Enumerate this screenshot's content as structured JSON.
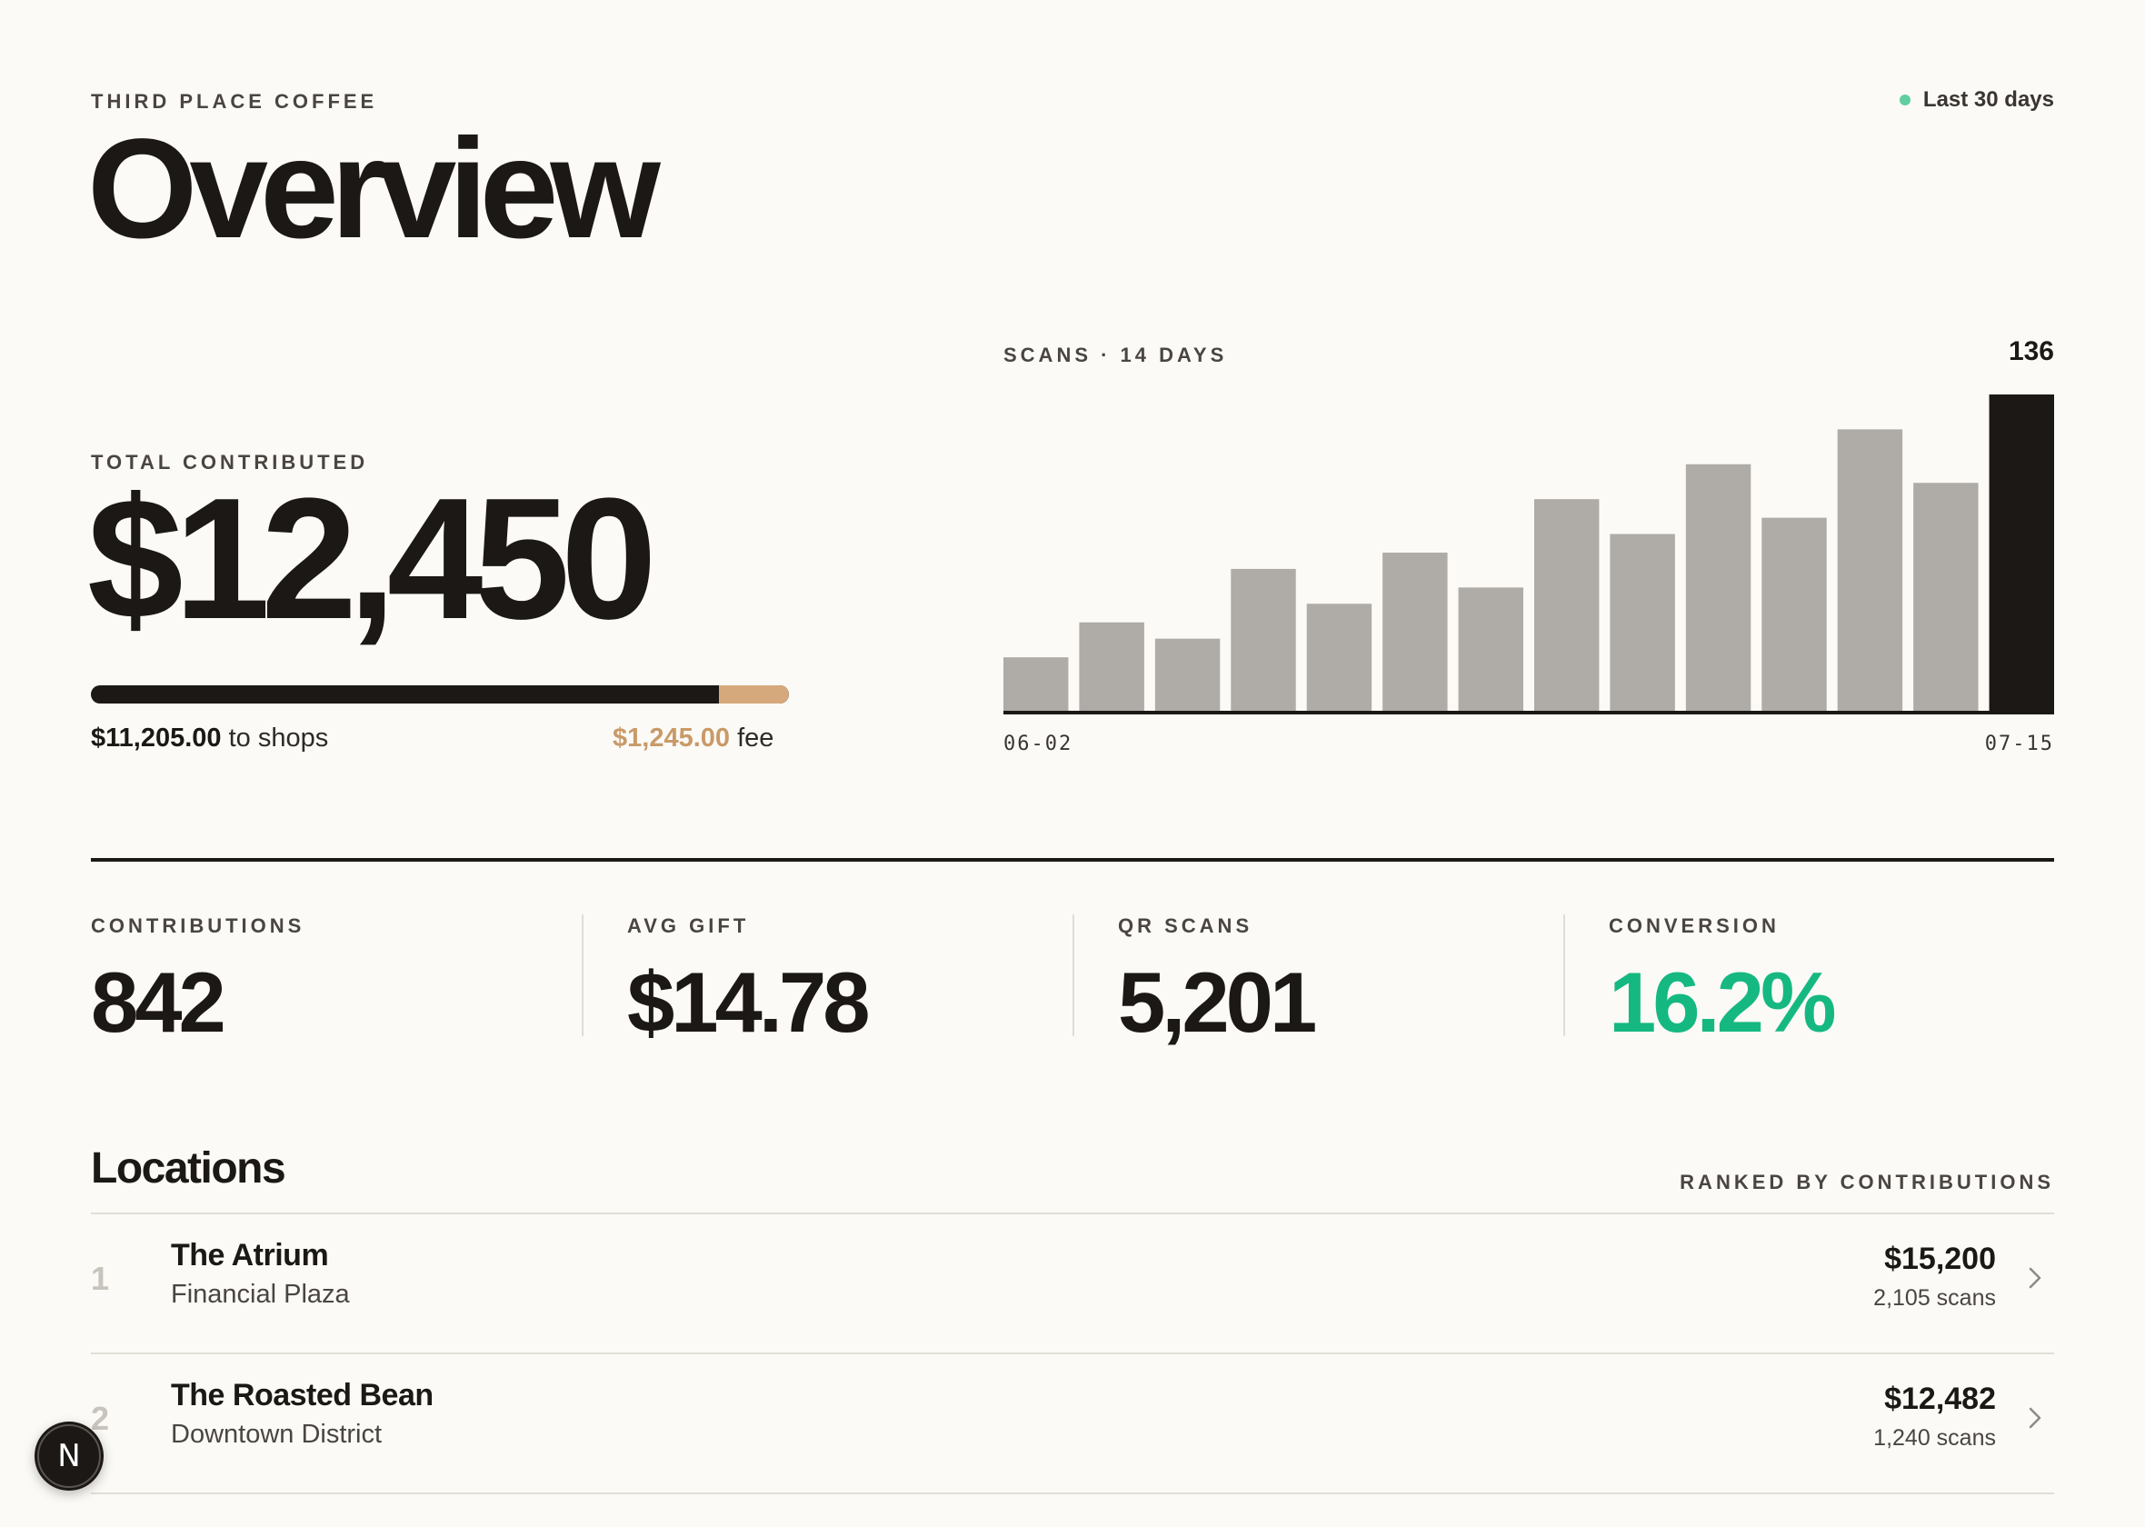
{
  "brand": "THIRD PLACE COFFEE",
  "title": "Overview",
  "range": {
    "label": "Last 30 days",
    "dot_color": "#5fcf9f"
  },
  "total": {
    "label": "TOTAL CONTRIBUTED",
    "value": "$12,450",
    "shops_amount": "$11,205.00",
    "shops_suffix": "to shops",
    "fee_amount": "$1,245.00",
    "fee_suffix": "fee",
    "fee_fraction": 0.1
  },
  "scans_chart": {
    "label": "SCANS · 14 DAYS",
    "peak": "136",
    "start": "06-02",
    "end": "07-15"
  },
  "chart_data": {
    "type": "bar",
    "title": "SCANS · 14 DAYS",
    "categories": [
      "06-02",
      "",
      "",
      "",
      "",
      "",
      "",
      "",
      "",
      "",
      "",
      "",
      "",
      "07-15"
    ],
    "values": [
      23,
      38,
      31,
      61,
      46,
      68,
      53,
      91,
      76,
      106,
      83,
      121,
      98,
      136
    ],
    "ylim": [
      0,
      136
    ],
    "highlight_last": true,
    "colors": {
      "bar": "#afaba7",
      "highlight": "#1b1815"
    }
  },
  "stats": [
    {
      "label": "CONTRIBUTIONS",
      "value": "842"
    },
    {
      "label": "AVG GIFT",
      "value": "$14.78"
    },
    {
      "label": "QR SCANS",
      "value": "5,201"
    },
    {
      "label": "CONVERSION",
      "value": "16.2%"
    }
  ],
  "accent_green": "#16b882",
  "locations": {
    "title": "Locations",
    "subtitle": "RANKED BY CONTRIBUTIONS",
    "items": [
      {
        "rank": "1",
        "name": "The Atrium",
        "area": "Financial Plaza",
        "amount": "$15,200",
        "scans": "2,105 scans"
      },
      {
        "rank": "2",
        "name": "The Roasted Bean",
        "area": "Downtown District",
        "amount": "$12,482",
        "scans": "1,240 scans"
      }
    ]
  },
  "fab_letter": "N"
}
